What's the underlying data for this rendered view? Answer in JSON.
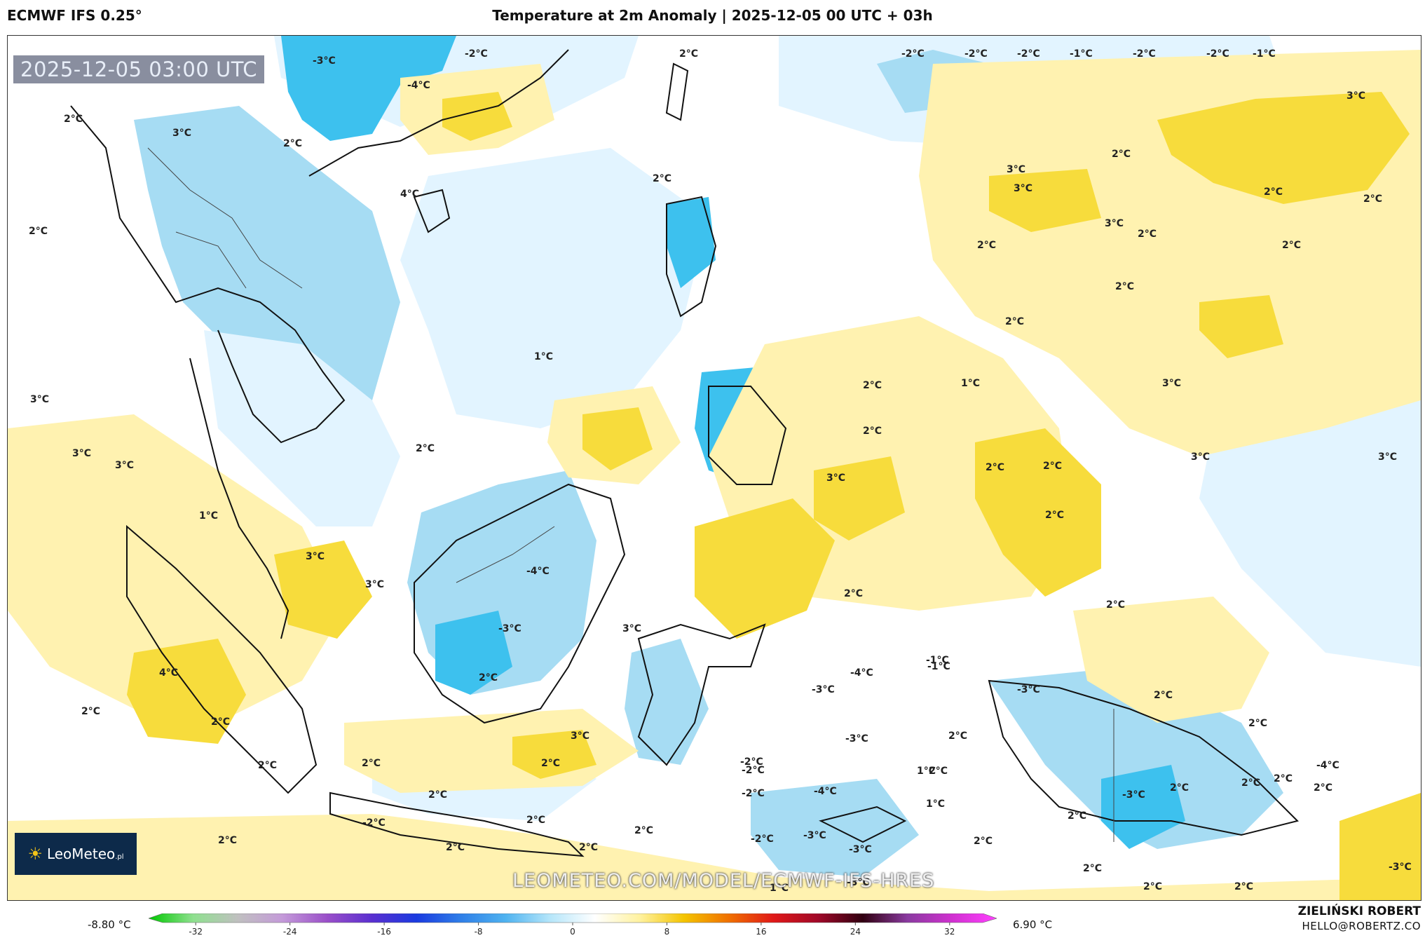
{
  "header": {
    "model": "ECMWF IFS 0.25°",
    "title": "Temperature at 2m Anomaly | 2025-12-05 00 UTC + 03h"
  },
  "map": {
    "valid_time": "2025-12-05 03:00 UTC",
    "watermark": "LEOMETEO.COM/MODEL/ECMWF-IFS-HRES",
    "logo_text": "LeoMeteo",
    "logo_suffix": ".pl",
    "colors": {
      "warm_light": "#fff2b0",
      "warm_mid": "#f7dc3c",
      "cool_light": "#e2f4ff",
      "cool_mid": "#a6dcf3",
      "cool_strong": "#3dc1ee"
    },
    "contour_labels": [
      {
        "text": "-2°C"
      },
      {
        "text": "-2°C"
      },
      {
        "text": "-2°C"
      },
      {
        "text": "-1°C"
      },
      {
        "text": "-2°C"
      },
      {
        "text": "-2°C"
      },
      {
        "text": "-1°C"
      },
      {
        "text": "-3°C"
      },
      {
        "text": "-2°C"
      },
      {
        "text": "-4°C"
      },
      {
        "text": "2°C"
      },
      {
        "text": "3°C"
      },
      {
        "text": "2°C"
      },
      {
        "text": "3°C"
      },
      {
        "text": "2°C"
      },
      {
        "text": "4°C"
      },
      {
        "text": "2°C"
      },
      {
        "text": "3°C"
      },
      {
        "text": "2°C"
      },
      {
        "text": "3°C"
      },
      {
        "text": "3°C"
      },
      {
        "text": "2°C"
      },
      {
        "text": "2°C"
      },
      {
        "text": "2°C"
      },
      {
        "text": "2°C"
      },
      {
        "text": "2°C"
      },
      {
        "text": "2°C"
      },
      {
        "text": "1°C"
      },
      {
        "text": "2°C"
      },
      {
        "text": "2°C"
      },
      {
        "text": "2°C"
      },
      {
        "text": "1°C"
      },
      {
        "text": "3°C"
      },
      {
        "text": "3°C"
      },
      {
        "text": "3°C"
      },
      {
        "text": "2°C"
      },
      {
        "text": "2°C"
      },
      {
        "text": "3°C"
      },
      {
        "text": "2°C"
      },
      {
        "text": "2°C"
      },
      {
        "text": "1°C"
      },
      {
        "text": "3°C"
      },
      {
        "text": "3°C"
      },
      {
        "text": "-4°C"
      },
      {
        "text": "3°C"
      },
      {
        "text": "3°C"
      },
      {
        "text": "3°C"
      },
      {
        "text": "2°C"
      },
      {
        "text": "2°C"
      },
      {
        "text": "3°C"
      },
      {
        "text": "2°C"
      },
      {
        "text": "-3°C"
      },
      {
        "text": "-4°C"
      },
      {
        "text": "2°C"
      },
      {
        "text": "4°C"
      },
      {
        "text": "2°C"
      },
      {
        "text": "2°C"
      },
      {
        "text": "2°C"
      },
      {
        "text": "2°C"
      },
      {
        "text": "2°C"
      },
      {
        "text": "3°C"
      },
      {
        "text": "2°C"
      },
      {
        "text": "-2°C"
      },
      {
        "text": "-2°C"
      },
      {
        "text": "2°C"
      },
      {
        "text": "2°C"
      },
      {
        "text": "2°C"
      },
      {
        "text": "2°C"
      },
      {
        "text": "1°C"
      },
      {
        "text": "-2°C"
      },
      {
        "text": "-3°C"
      },
      {
        "text": "-3°C"
      },
      {
        "text": "-1°C"
      },
      {
        "text": "-3°C"
      },
      {
        "text": "2°C"
      },
      {
        "text": "2°C"
      },
      {
        "text": "1°C"
      },
      {
        "text": "2°C"
      },
      {
        "text": "2°C"
      },
      {
        "text": "2°C"
      },
      {
        "text": "-3°C"
      },
      {
        "text": "2°C"
      },
      {
        "text": "-4°C"
      },
      {
        "text": "2°C"
      },
      {
        "text": "-3°C"
      },
      {
        "text": "2°C"
      },
      {
        "text": "2°C"
      },
      {
        "text": "2°C"
      },
      {
        "text": "2°C"
      },
      {
        "text": "-3°C"
      },
      {
        "text": "-4°C"
      },
      {
        "text": "2°C"
      },
      {
        "text": "-2°C"
      },
      {
        "text": "1°C"
      },
      {
        "text": "-2°C"
      },
      {
        "text": "-3°C"
      },
      {
        "text": "-1°C"
      },
      {
        "text": "2°C"
      },
      {
        "text": "2°C"
      },
      {
        "text": "-3°C"
      }
    ]
  },
  "legend": {
    "min_label": "-8.80 °C",
    "max_label": "6.90 °C",
    "ticks": [
      "-32",
      "-24",
      "-16",
      "-8",
      "0",
      "8",
      "16",
      "24",
      "32"
    ],
    "tick_values": [
      -32,
      -24,
      -16,
      -8,
      0,
      8,
      16,
      24,
      32
    ],
    "range": [
      -36,
      36
    ],
    "colors": [
      "#00c800",
      "#8fe08f",
      "#c0c0c0",
      "#c49ad9",
      "#9a4fc9",
      "#5a2fd0",
      "#1a3ae0",
      "#2f7fe8",
      "#4fb3f0",
      "#b6e6fa",
      "#ffffff",
      "#fff2a0",
      "#f4c400",
      "#f07000",
      "#e01818",
      "#a00828",
      "#300010",
      "#8a3aa0",
      "#d030d0",
      "#ff40ff"
    ]
  },
  "credits": {
    "author": "ZIELIŃSKI ROBERT",
    "email": "HELLO@ROBERTZ.CO"
  }
}
